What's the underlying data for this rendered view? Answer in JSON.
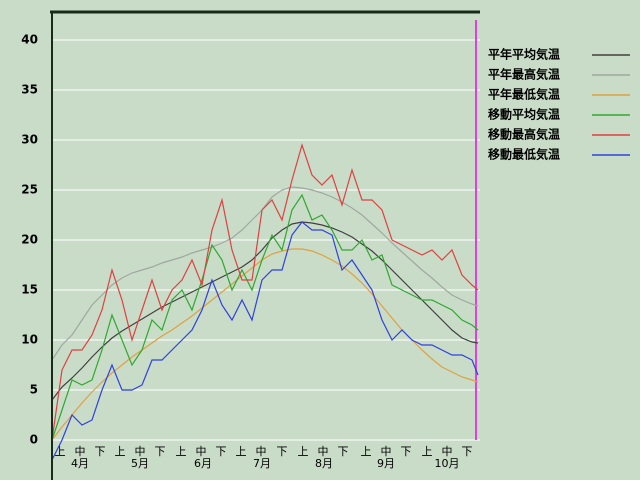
{
  "chart_data": {
    "type": "line",
    "x": [
      0,
      5,
      10,
      15,
      20,
      25,
      30,
      35,
      40,
      45,
      50,
      55,
      60,
      65,
      70,
      75,
      80,
      85,
      90,
      95,
      100,
      105,
      110,
      115,
      120,
      125,
      130,
      135,
      140,
      145,
      150,
      155,
      160,
      165,
      170,
      175,
      180,
      185,
      190,
      195,
      200,
      205,
      210,
      213
    ],
    "xlim": [
      0,
      214
    ],
    "xticks": [
      {
        "value": 4,
        "label": "上"
      },
      {
        "value": 14,
        "label": "中"
      },
      {
        "value": 24,
        "label": "下"
      },
      {
        "value": 34,
        "label": "上"
      },
      {
        "value": 44,
        "label": "中"
      },
      {
        "value": 54,
        "label": "下"
      },
      {
        "value": 64.5,
        "label": "上"
      },
      {
        "value": 74.5,
        "label": "中"
      },
      {
        "value": 84.5,
        "label": "下"
      },
      {
        "value": 94.5,
        "label": "上"
      },
      {
        "value": 104.5,
        "label": "中"
      },
      {
        "value": 115,
        "label": "下"
      },
      {
        "value": 125.5,
        "label": "上"
      },
      {
        "value": 135.5,
        "label": "中"
      },
      {
        "value": 145.5,
        "label": "下"
      },
      {
        "value": 157,
        "label": "上"
      },
      {
        "value": 167,
        "label": "中"
      },
      {
        "value": 177,
        "label": "下"
      },
      {
        "value": 187.5,
        "label": "上"
      },
      {
        "value": 197.5,
        "label": "中"
      },
      {
        "value": 207.5,
        "label": "下"
      }
    ],
    "month_labels": [
      {
        "value": 14,
        "label": "4月"
      },
      {
        "value": 44,
        "label": "5月"
      },
      {
        "value": 75.5,
        "label": "6月"
      },
      {
        "value": 105,
        "label": "7月"
      },
      {
        "value": 136,
        "label": "8月"
      },
      {
        "value": 167,
        "label": "9月"
      },
      {
        "value": 197.5,
        "label": "10月"
      }
    ],
    "ylim": [
      -4,
      42.8
    ],
    "yticks": [
      0,
      5,
      10,
      15,
      20,
      25,
      30,
      35,
      40
    ],
    "grid": true,
    "vline_x": 212,
    "series": [
      {
        "name": "平年平均気温",
        "color": "#404040",
        "values": [
          4.0,
          5.3,
          6.2,
          7.2,
          8.3,
          9.3,
          10.2,
          10.9,
          11.5,
          12.1,
          12.7,
          13.3,
          13.8,
          14.3,
          14.8,
          15.3,
          15.8,
          16.3,
          16.8,
          17.3,
          18.0,
          19.0,
          20.2,
          21.0,
          21.6,
          21.8,
          21.7,
          21.5,
          21.2,
          20.8,
          20.3,
          19.6,
          18.9,
          18.0,
          17.0,
          16.0,
          15.0,
          14.0,
          13.0,
          12.0,
          11.0,
          10.2,
          9.8,
          9.7
        ]
      },
      {
        "name": "平年最高気温",
        "color": "#a0a8a0",
        "values": [
          8,
          9.5,
          10.5,
          12,
          13.5,
          14.5,
          15.5,
          16.2,
          16.7,
          17,
          17.3,
          17.7,
          18,
          18.3,
          18.7,
          19,
          19.3,
          19.7,
          20.2,
          21,
          22,
          23,
          24.3,
          25,
          25.3,
          25.2,
          25,
          24.7,
          24.3,
          23.8,
          23.2,
          22.5,
          21.6,
          20.7,
          19.7,
          18.8,
          17.9,
          17,
          16.2,
          15.3,
          14.5,
          14,
          13.6,
          13.4
        ]
      },
      {
        "name": "平年最低気温",
        "color": "#e0a040",
        "values": [
          0,
          1.3,
          2.5,
          3.7,
          4.8,
          5.8,
          6.7,
          7.5,
          8.3,
          9,
          9.7,
          10.4,
          11,
          11.7,
          12.4,
          13.2,
          14,
          14.8,
          15.6,
          16.4,
          17.2,
          18,
          18.6,
          18.9,
          19.1,
          19.1,
          18.9,
          18.5,
          18,
          17.4,
          16.6,
          15.7,
          14.6,
          13.4,
          12.2,
          11,
          10,
          9,
          8.1,
          7.3,
          6.8,
          6.3,
          6.0,
          5.8
        ]
      },
      {
        "name": "移動平均気温",
        "color": "#30a830",
        "values": [
          0,
          3,
          6,
          5.5,
          6,
          9,
          12.5,
          10,
          7.5,
          9,
          12,
          11,
          14,
          15,
          13,
          16,
          19.5,
          18,
          15,
          17,
          15,
          18,
          20.5,
          19,
          23,
          24.5,
          22,
          22.5,
          21,
          19,
          19,
          20,
          18,
          18.5,
          15.5,
          15,
          14.5,
          14,
          14,
          13.5,
          13,
          12,
          11.5,
          11
        ]
      },
      {
        "name": "移動最高気温",
        "color": "#e04040",
        "values": [
          0,
          7,
          9,
          9,
          10.5,
          13,
          17,
          14,
          10,
          13,
          16,
          13,
          15,
          16,
          18,
          15.5,
          21,
          24,
          19,
          16,
          16,
          23,
          24,
          22,
          26,
          29.5,
          26.5,
          25.5,
          26.5,
          23.5,
          27,
          24,
          24,
          23,
          20,
          19.5,
          19,
          18.5,
          19,
          18,
          19,
          16.5,
          15.5,
          15
        ]
      },
      {
        "name": "移動最低気温",
        "color": "#3040e0",
        "values": [
          -2,
          0,
          2.5,
          1.5,
          2,
          5,
          7.5,
          5,
          5,
          5.5,
          8,
          8,
          9,
          10,
          11,
          13,
          16,
          13.5,
          12,
          14,
          12,
          16,
          17,
          17,
          20.5,
          21.8,
          21,
          21,
          20.5,
          17,
          18,
          16.5,
          15,
          12,
          10,
          11,
          10,
          9.5,
          9.5,
          9,
          8.5,
          8.5,
          8,
          6.5
        ]
      }
    ]
  }
}
